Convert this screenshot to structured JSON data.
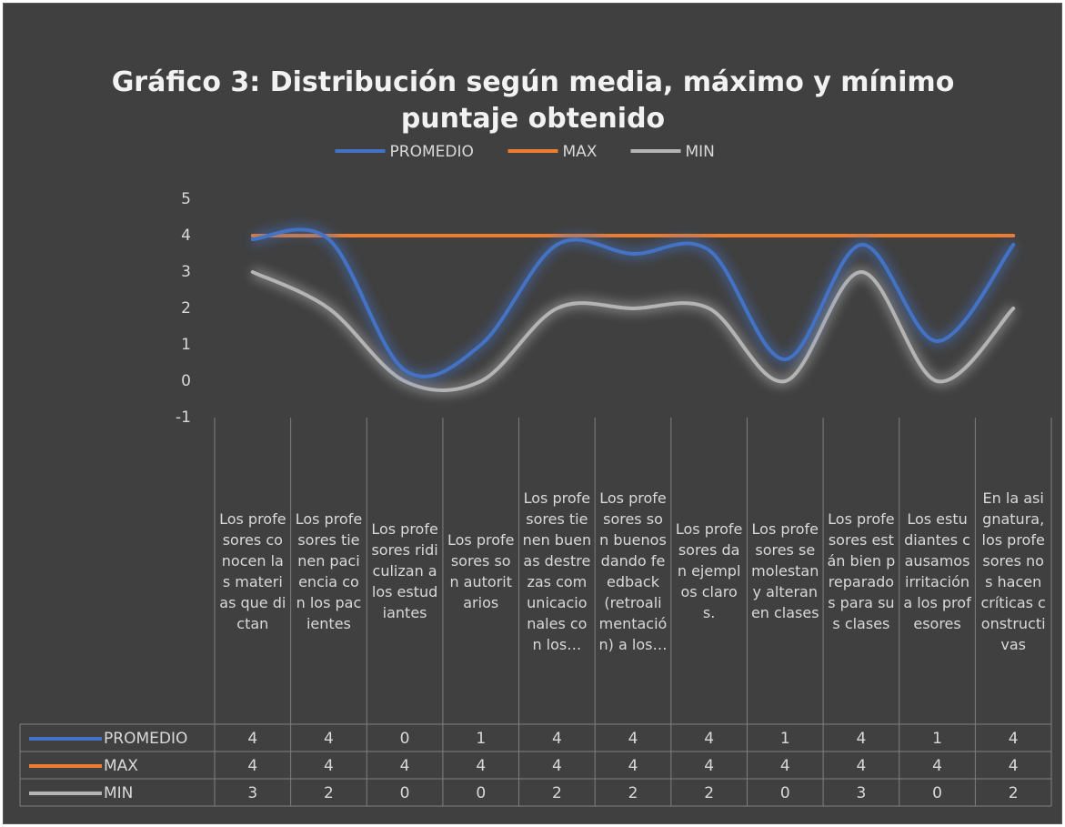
{
  "chart_data": {
    "type": "line",
    "title": "Gráfico 3: Distribución según media, máximo y mínimo puntaje obtenido",
    "categories": [
      "Los profesores conocen las materias que dictan",
      "Los profesores tienen paciencia con los pacientes",
      "Los profesores ridiculizan a los estudiantes",
      "Los profesores son autoritarios",
      "Los profesores tienen buenas destrezas comunicacionales con los…",
      "Los profesores son buenos dando feedback (retroalimentación) a los…",
      "Los profesores dan ejemplos claros.",
      "Los profesores se molestan y alteran en clases",
      "Los profesores están bien preparados para sus clases",
      "Los estudiantes causamos irritación a los profesores",
      "En la asignatura, los profesores nos hacen críticas constructivas"
    ],
    "series": [
      {
        "name": "PROMEDIO",
        "color": "#4472c4",
        "values": [
          3.9,
          3.9,
          0.3,
          1.0,
          3.75,
          3.5,
          3.6,
          0.6,
          3.75,
          1.1,
          3.75
        ],
        "value_labels": [
          "4",
          "4",
          "0",
          "1",
          "4",
          "4",
          "4",
          "1",
          "4",
          "1",
          "4"
        ]
      },
      {
        "name": "MAX",
        "color": "#ed7d31",
        "values": [
          4,
          4,
          4,
          4,
          4,
          4,
          4,
          4,
          4,
          4,
          4
        ]
      },
      {
        "name": "MIN",
        "color": "#b4b4b4",
        "values": [
          3,
          2,
          0,
          0,
          2,
          2,
          2,
          0,
          3,
          0,
          2
        ]
      }
    ],
    "ylim": [
      -1,
      5
    ],
    "yticks": [
      -1,
      0,
      1,
      2,
      3,
      4,
      5
    ],
    "legend": "top",
    "data_table": true
  }
}
